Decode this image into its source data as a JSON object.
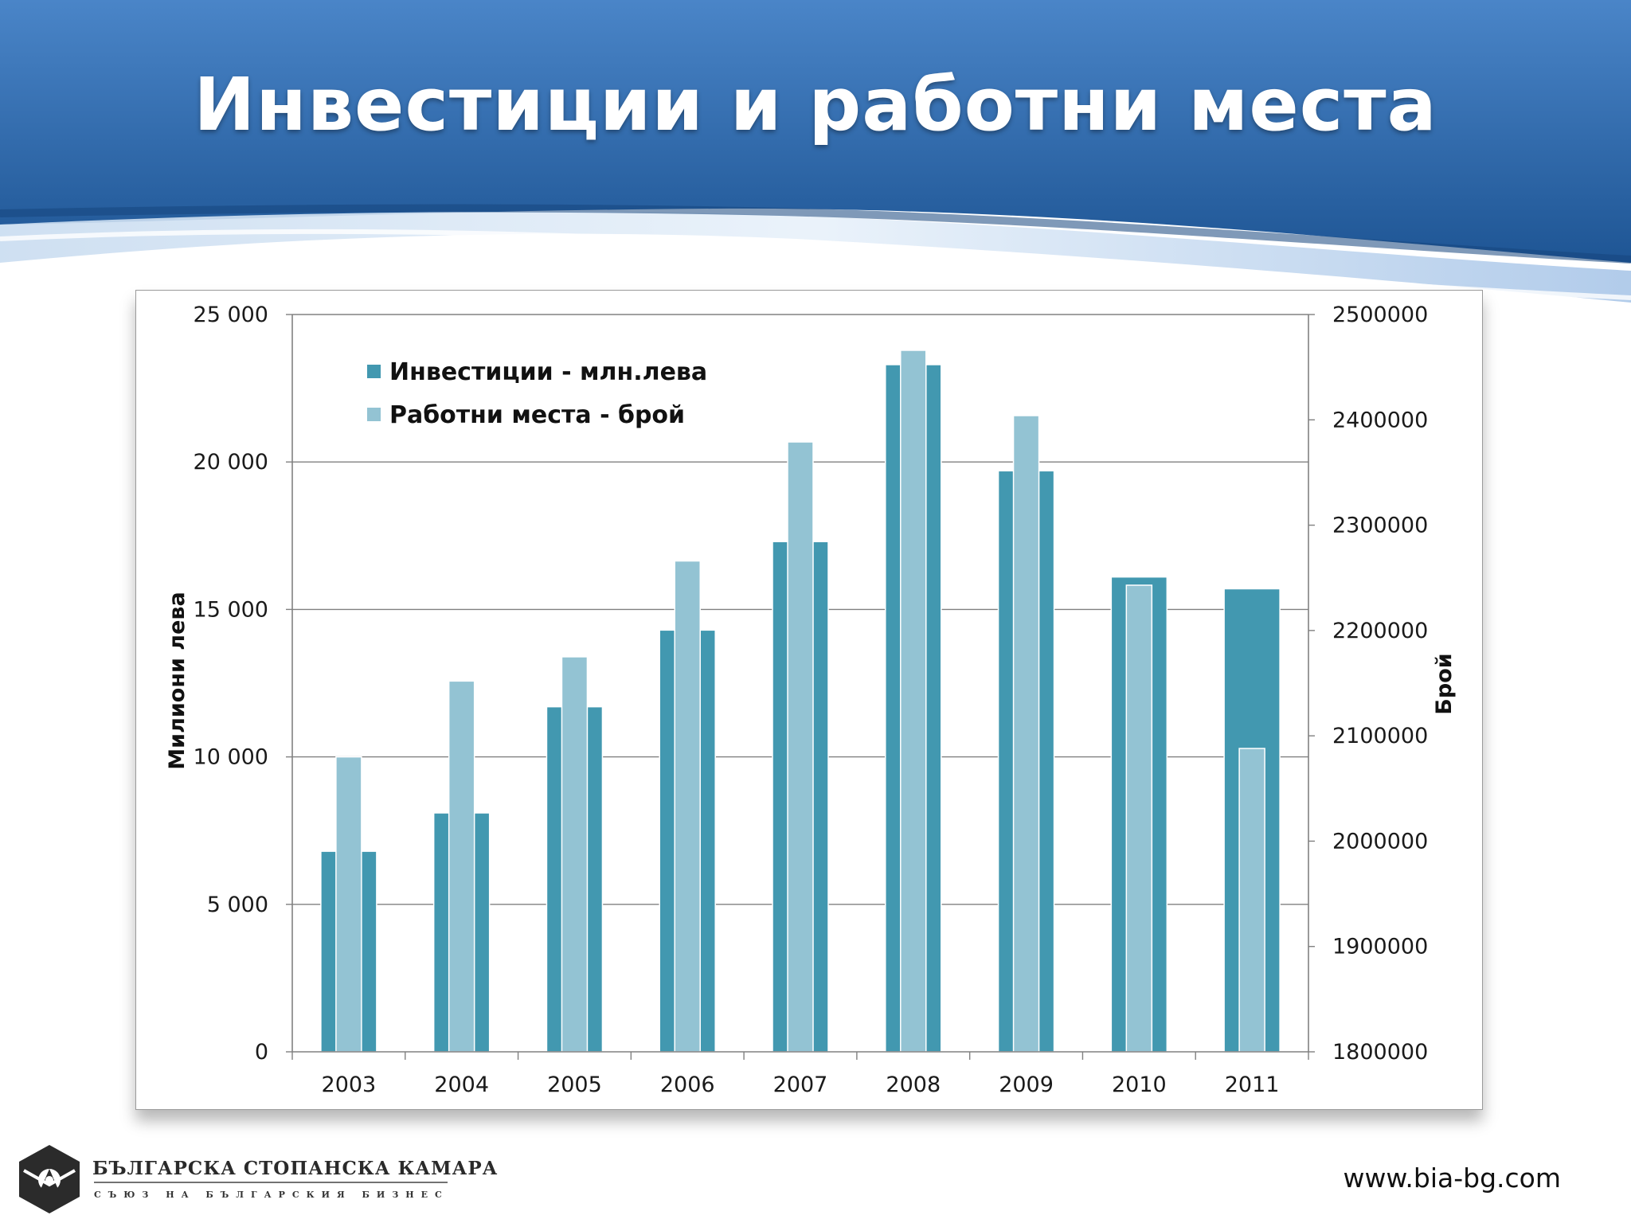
{
  "slide": {
    "title": "Инвестиции и работни места",
    "website": "www.bia-bg.com",
    "organization": {
      "name": "БЪЛГАРСКА СТОПАНСКА КАМАРА",
      "subtitle": "СЪЮЗ НА БЪЛГАРСКИЯ БИЗНЕС"
    }
  },
  "colors": {
    "header_dark": "#1f5796",
    "header_light": "#4a85c8",
    "investments": "#4298b0",
    "jobs": "#93c3d3",
    "gridline": "#808080"
  },
  "chart_data": {
    "type": "bar",
    "title": "",
    "categories": [
      "2003",
      "2004",
      "2005",
      "2006",
      "2007",
      "2008",
      "2009",
      "2010",
      "2011"
    ],
    "series": [
      {
        "name": "Инвестиции - млн.лева",
        "axis": "left",
        "values": [
          6800,
          8100,
          11700,
          14300,
          17300,
          23300,
          19700,
          16100,
          15700
        ]
      },
      {
        "name": "Работни места - брой",
        "axis": "right",
        "values": [
          2080000,
          2152000,
          2175000,
          2266000,
          2379000,
          2466000,
          2404000,
          2243000,
          2088000
        ]
      }
    ],
    "y_left": {
      "label": "Милиони лева",
      "range": [
        0,
        25000
      ],
      "ticks": [
        "0",
        "5 000",
        "10 000",
        "15 000",
        "20 000",
        "25 000"
      ]
    },
    "y_right": {
      "label": "Брой",
      "range": [
        1800000,
        2500000
      ],
      "ticks": [
        "1800000",
        "1900000",
        "2000000",
        "2100000",
        "2200000",
        "2300000",
        "2400000",
        "2500000"
      ]
    },
    "grid": true,
    "legend_position": "top-left"
  }
}
